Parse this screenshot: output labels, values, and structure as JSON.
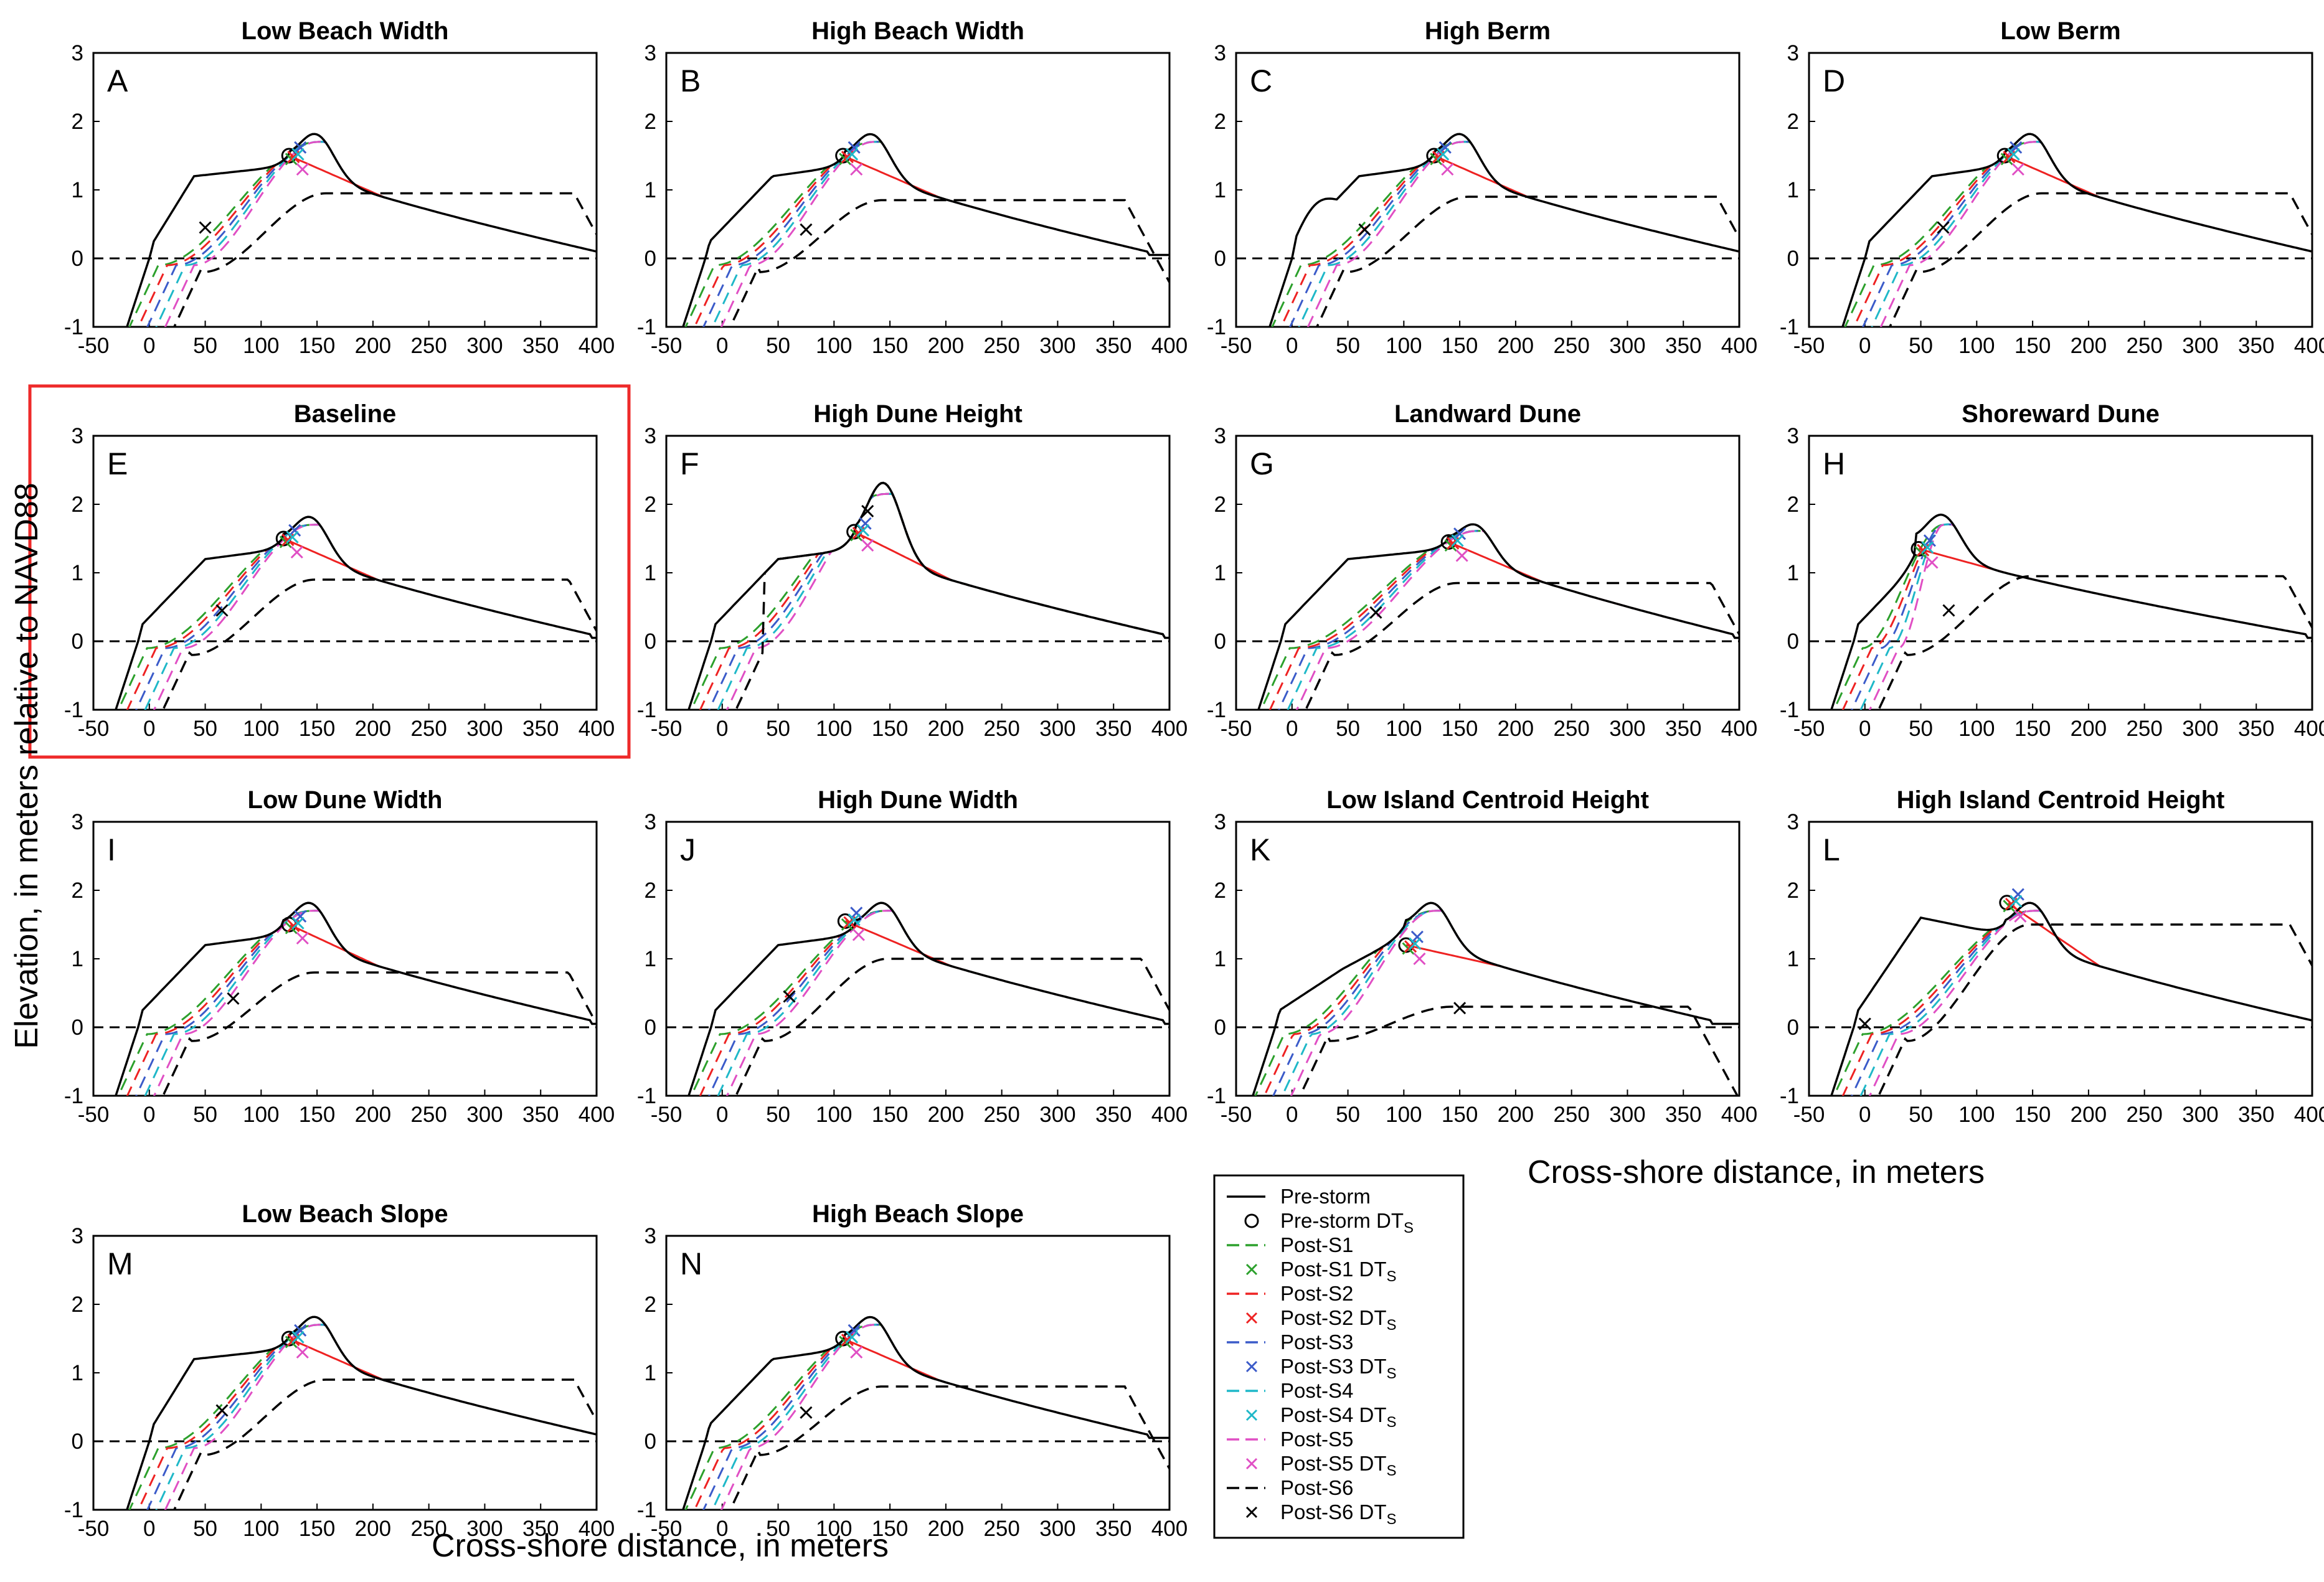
{
  "figure": {
    "ylabel": "Elevation, in meters relative to NAVD88",
    "xlabel_bottom": "Cross-shore distance, in meters",
    "xlabel_right": "Cross-shore distance, in meters",
    "highlight_color": "#ee2a2a"
  },
  "legend": {
    "entries": [
      {
        "label": "Pre-storm",
        "sub": "",
        "kind": "line",
        "color": "#000000",
        "dash": "solid"
      },
      {
        "label": "Pre-storm DT",
        "sub": "S",
        "kind": "circle",
        "color": "#000000"
      },
      {
        "label": "Post-S1",
        "sub": "",
        "kind": "line",
        "color": "#2ca02c",
        "dash": "dash"
      },
      {
        "label": "Post-S1 DT",
        "sub": "S",
        "kind": "cross",
        "color": "#2ca02c"
      },
      {
        "label": "Post-S2",
        "sub": "",
        "kind": "line",
        "color": "#ee2222",
        "dash": "dash"
      },
      {
        "label": "Post-S2 DT",
        "sub": "S",
        "kind": "cross",
        "color": "#ee2222"
      },
      {
        "label": "Post-S3",
        "sub": "",
        "kind": "line",
        "color": "#3b5bc9",
        "dash": "dash"
      },
      {
        "label": "Post-S3 DT",
        "sub": "S",
        "kind": "cross",
        "color": "#3b5bc9"
      },
      {
        "label": "Post-S4",
        "sub": "",
        "kind": "line",
        "color": "#1fb8c8",
        "dash": "dash"
      },
      {
        "label": "Post-S4 DT",
        "sub": "S",
        "kind": "cross",
        "color": "#1fb8c8"
      },
      {
        "label": "Post-S5",
        "sub": "",
        "kind": "line",
        "color": "#e04fc4",
        "dash": "dash"
      },
      {
        "label": "Post-S5 DT",
        "sub": "S",
        "kind": "cross",
        "color": "#e04fc4"
      },
      {
        "label": "Post-S6",
        "sub": "",
        "kind": "line",
        "color": "#000000",
        "dash": "dash"
      },
      {
        "label": "Post-S6 DT",
        "sub": "S",
        "kind": "cross",
        "color": "#000000"
      }
    ]
  },
  "chart_data": {
    "type": "line",
    "xlim": [
      -50,
      400
    ],
    "ylim": [
      -1,
      3
    ],
    "xticks": [
      -50,
      0,
      50,
      100,
      150,
      200,
      250,
      300,
      350,
      400
    ],
    "yticks": [
      -1,
      0,
      1,
      2,
      3
    ],
    "series_names": [
      "Pre-storm",
      "Post-S1",
      "Post-S2",
      "Post-S3",
      "Post-S4",
      "Post-S5",
      "Post-S6"
    ],
    "panels": [
      {
        "letter": "A",
        "title": "Low Beach Width",
        "highlight": false,
        "dune_x": 150,
        "dune_z": 2.0,
        "ct_x": 125,
        "ct_z": 1.5,
        "toe_x": 0,
        "end_x": 400,
        "s6_peak": 0.95,
        "s6_x": 50,
        "s6_z": 0.45,
        "variant": "lowbeach"
      },
      {
        "letter": "B",
        "title": "High Beach Width",
        "highlight": false,
        "dune_x": 135,
        "dune_z": 2.0,
        "ct_x": 108,
        "ct_z": 1.5,
        "toe_x": -15,
        "end_x": 380,
        "s6_peak": 0.85,
        "s6_x": 75,
        "s6_z": 0.42,
        "variant": "normal"
      },
      {
        "letter": "C",
        "title": "High Berm",
        "highlight": false,
        "dune_x": 152,
        "dune_z": 2.0,
        "ct_x": 127,
        "ct_z": 1.5,
        "toe_x": 0,
        "end_x": 400,
        "s6_peak": 0.9,
        "s6_x": 65,
        "s6_z": 0.42,
        "variant": "highberm"
      },
      {
        "letter": "D",
        "title": "Low Berm",
        "highlight": false,
        "dune_x": 150,
        "dune_z": 2.0,
        "ct_x": 125,
        "ct_z": 1.5,
        "toe_x": 0,
        "end_x": 400,
        "s6_peak": 0.95,
        "s6_x": 70,
        "s6_z": 0.45,
        "variant": "lowberm"
      },
      {
        "letter": "E",
        "title": "Baseline",
        "highlight": true,
        "dune_x": 145,
        "dune_z": 2.0,
        "ct_x": 120,
        "ct_z": 1.5,
        "toe_x": -10,
        "end_x": 395,
        "s6_peak": 0.9,
        "s6_x": 65,
        "s6_z": 0.45,
        "variant": "normal"
      },
      {
        "letter": "F",
        "title": "High Dune Height",
        "highlight": false,
        "dune_x": 145,
        "dune_z": 2.5,
        "ct_x": 118,
        "ct_z": 1.6,
        "toe_x": -10,
        "end_x": 395,
        "s6_peak": 2.5,
        "s6_x": 130,
        "s6_z": 1.9,
        "variant": "highdune"
      },
      {
        "letter": "G",
        "title": "Landward Dune",
        "highlight": false,
        "dune_x": 165,
        "dune_z": 1.9,
        "ct_x": 140,
        "ct_z": 1.45,
        "toe_x": -10,
        "end_x": 395,
        "s6_peak": 0.85,
        "s6_x": 75,
        "s6_z": 0.42,
        "variant": "normal"
      },
      {
        "letter": "H",
        "title": "Shoreward Dune",
        "highlight": false,
        "dune_x": 70,
        "dune_z": 2.0,
        "ct_x": 48,
        "ct_z": 1.35,
        "toe_x": -10,
        "end_x": 395,
        "s6_peak": 0.95,
        "s6_x": 75,
        "s6_z": 0.45,
        "variant": "shoreward"
      },
      {
        "letter": "I",
        "title": "Low Dune Width",
        "highlight": false,
        "dune_x": 145,
        "dune_z": 2.0,
        "ct_x": 125,
        "ct_z": 1.5,
        "toe_x": -10,
        "end_x": 395,
        "s6_peak": 0.8,
        "s6_x": 75,
        "s6_z": 0.42,
        "variant": "normal"
      },
      {
        "letter": "J",
        "title": "High Dune Width",
        "highlight": false,
        "dune_x": 145,
        "dune_z": 2.0,
        "ct_x": 110,
        "ct_z": 1.55,
        "toe_x": -10,
        "end_x": 395,
        "s6_peak": 1.0,
        "s6_x": 60,
        "s6_z": 0.45,
        "variant": "normal"
      },
      {
        "letter": "K",
        "title": "Low Island Centroid Height",
        "highlight": false,
        "dune_x": 127,
        "dune_z": 2.0,
        "ct_x": 102,
        "ct_z": 1.2,
        "toe_x": -15,
        "end_x": 375,
        "s6_peak": 0.3,
        "s6_x": 150,
        "s6_z": 0.28,
        "variant": "lowcentroid"
      },
      {
        "letter": "L",
        "title": "High Island Centroid Height",
        "highlight": false,
        "dune_x": 150,
        "dune_z": 2.0,
        "ct_x": 127,
        "ct_z": 1.82,
        "toe_x": -10,
        "end_x": 400,
        "s6_peak": 1.5,
        "s6_x": 0,
        "s6_z": 0.05,
        "variant": "highcentroid"
      },
      {
        "letter": "M",
        "title": "Low Beach Slope",
        "highlight": false,
        "dune_x": 150,
        "dune_z": 2.0,
        "ct_x": 125,
        "ct_z": 1.5,
        "toe_x": 0,
        "end_x": 400,
        "s6_peak": 0.9,
        "s6_x": 65,
        "s6_z": 0.45,
        "variant": "lowslope"
      },
      {
        "letter": "N",
        "title": "High Beach Slope",
        "highlight": false,
        "dune_x": 135,
        "dune_z": 2.0,
        "ct_x": 108,
        "ct_z": 1.5,
        "toe_x": -15,
        "end_x": 380,
        "s6_peak": 0.8,
        "s6_x": 75,
        "s6_z": 0.42,
        "variant": "normal"
      }
    ]
  }
}
